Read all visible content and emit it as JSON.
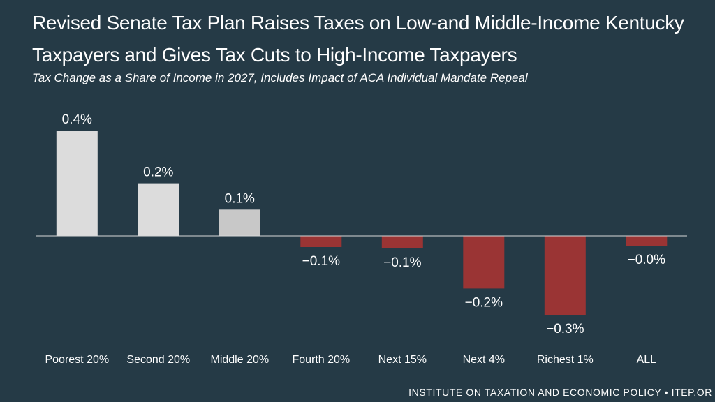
{
  "header": {
    "title": "Revised Senate Tax Plan Raises Taxes on Low-and Middle-Income Kentucky Taxpayers and Gives Tax Cuts to High-Income Taxpayers",
    "subtitle": "Tax Change as a Share of Income in 2027, Includes Impact of ACA Individual Mandate Repeal"
  },
  "footer": {
    "source": "INSTITUTE ON TAXATION AND ECONOMIC POLICY • ITEP.OR"
  },
  "chart_data": {
    "type": "bar",
    "title": "Revised Senate Tax Plan Raises Taxes on Low-and Middle-Income Kentucky Taxpayers and Gives Tax Cuts to High-Income Taxpayers",
    "subtitle": "Tax Change as a Share of Income in 2027, Includes Impact of ACA Individual Mandate Repeal",
    "xlabel": "",
    "ylabel": "",
    "grid": false,
    "categories": [
      "Poorest 20%",
      "Second 20%",
      "Middle 20%",
      "Fourth 20%",
      "Next 15%",
      "Next 4%",
      "Richest 1%",
      "ALL"
    ],
    "values": [
      0.4,
      0.2,
      0.1,
      -0.1,
      -0.1,
      -0.2,
      -0.3,
      -0.0
    ],
    "value_labels": [
      "0.4%",
      "0.2%",
      "0.1%",
      "−0.1%",
      "−0.1%",
      "−0.2%",
      "−0.3%",
      "−0.0%"
    ],
    "ylim": [
      -0.35,
      0.45
    ],
    "colors": {
      "positive": "#dcdcdc",
      "positive_light": "#c8c8c8",
      "negative": "#9a3434",
      "axis": "#d8d8d8"
    }
  }
}
